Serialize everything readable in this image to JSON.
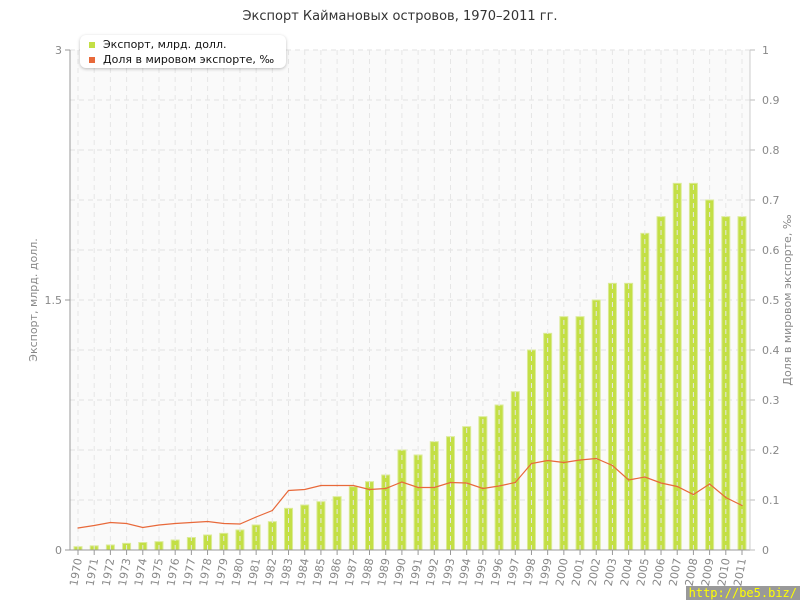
{
  "chart_data": {
    "type": "bar",
    "title": "Экспорт Каймановых островов, 1970–2011 гг.",
    "ylabel": "Экспорт, млрд. долл.",
    "y2label": "Доля в мировом экспорте, ‰",
    "ylim": [
      0,
      3
    ],
    "y2lim": [
      0,
      1
    ],
    "yticks": [
      "0",
      "1.5",
      "3"
    ],
    "y2ticks": [
      "0",
      "0.1",
      "0.2",
      "0.3",
      "0.4",
      "0.5",
      "0.6",
      "0.7",
      "0.8",
      "0.9",
      "1"
    ],
    "grid": true,
    "legend_position": "top-left",
    "categories": [
      "1970",
      "1971",
      "1972",
      "1973",
      "1974",
      "1975",
      "1976",
      "1977",
      "1978",
      "1979",
      "1980",
      "1981",
      "1982",
      "1983",
      "1984",
      "1985",
      "1986",
      "1987",
      "1988",
      "1989",
      "1990",
      "1991",
      "1992",
      "1993",
      "1994",
      "1995",
      "1996",
      "1997",
      "1998",
      "1999",
      "2000",
      "2001",
      "2002",
      "2003",
      "2004",
      "2005",
      "2006",
      "2007",
      "2008",
      "2009",
      "2010",
      "2011"
    ],
    "series": [
      {
        "name": "Экспорт, млрд. долл.",
        "type": "bar",
        "axis": "left",
        "color": "#c3df45",
        "values": [
          0.02,
          0.025,
          0.03,
          0.04,
          0.045,
          0.05,
          0.06,
          0.075,
          0.09,
          0.1,
          0.12,
          0.15,
          0.17,
          0.25,
          0.27,
          0.29,
          0.32,
          0.38,
          0.41,
          0.45,
          0.6,
          0.57,
          0.65,
          0.68,
          0.74,
          0.8,
          0.87,
          0.95,
          1.2,
          1.3,
          1.4,
          1.4,
          1.5,
          1.6,
          1.6,
          1.9,
          2.0,
          2.2,
          2.2,
          2.1,
          2.0,
          2.0
        ]
      },
      {
        "name": "Доля в мировом экспорте, ‰",
        "type": "line",
        "axis": "right",
        "color": "#e8693a",
        "values": [
          0.044,
          0.049,
          0.055,
          0.053,
          0.045,
          0.05,
          0.053,
          0.055,
          0.057,
          0.053,
          0.052,
          0.066,
          0.079,
          0.119,
          0.121,
          0.129,
          0.129,
          0.129,
          0.121,
          0.123,
          0.136,
          0.125,
          0.125,
          0.135,
          0.134,
          0.123,
          0.128,
          0.135,
          0.173,
          0.179,
          0.175,
          0.18,
          0.183,
          0.169,
          0.14,
          0.146,
          0.134,
          0.127,
          0.111,
          0.132,
          0.105,
          0.089
        ]
      }
    ]
  },
  "watermark": "http://be5.biz/"
}
